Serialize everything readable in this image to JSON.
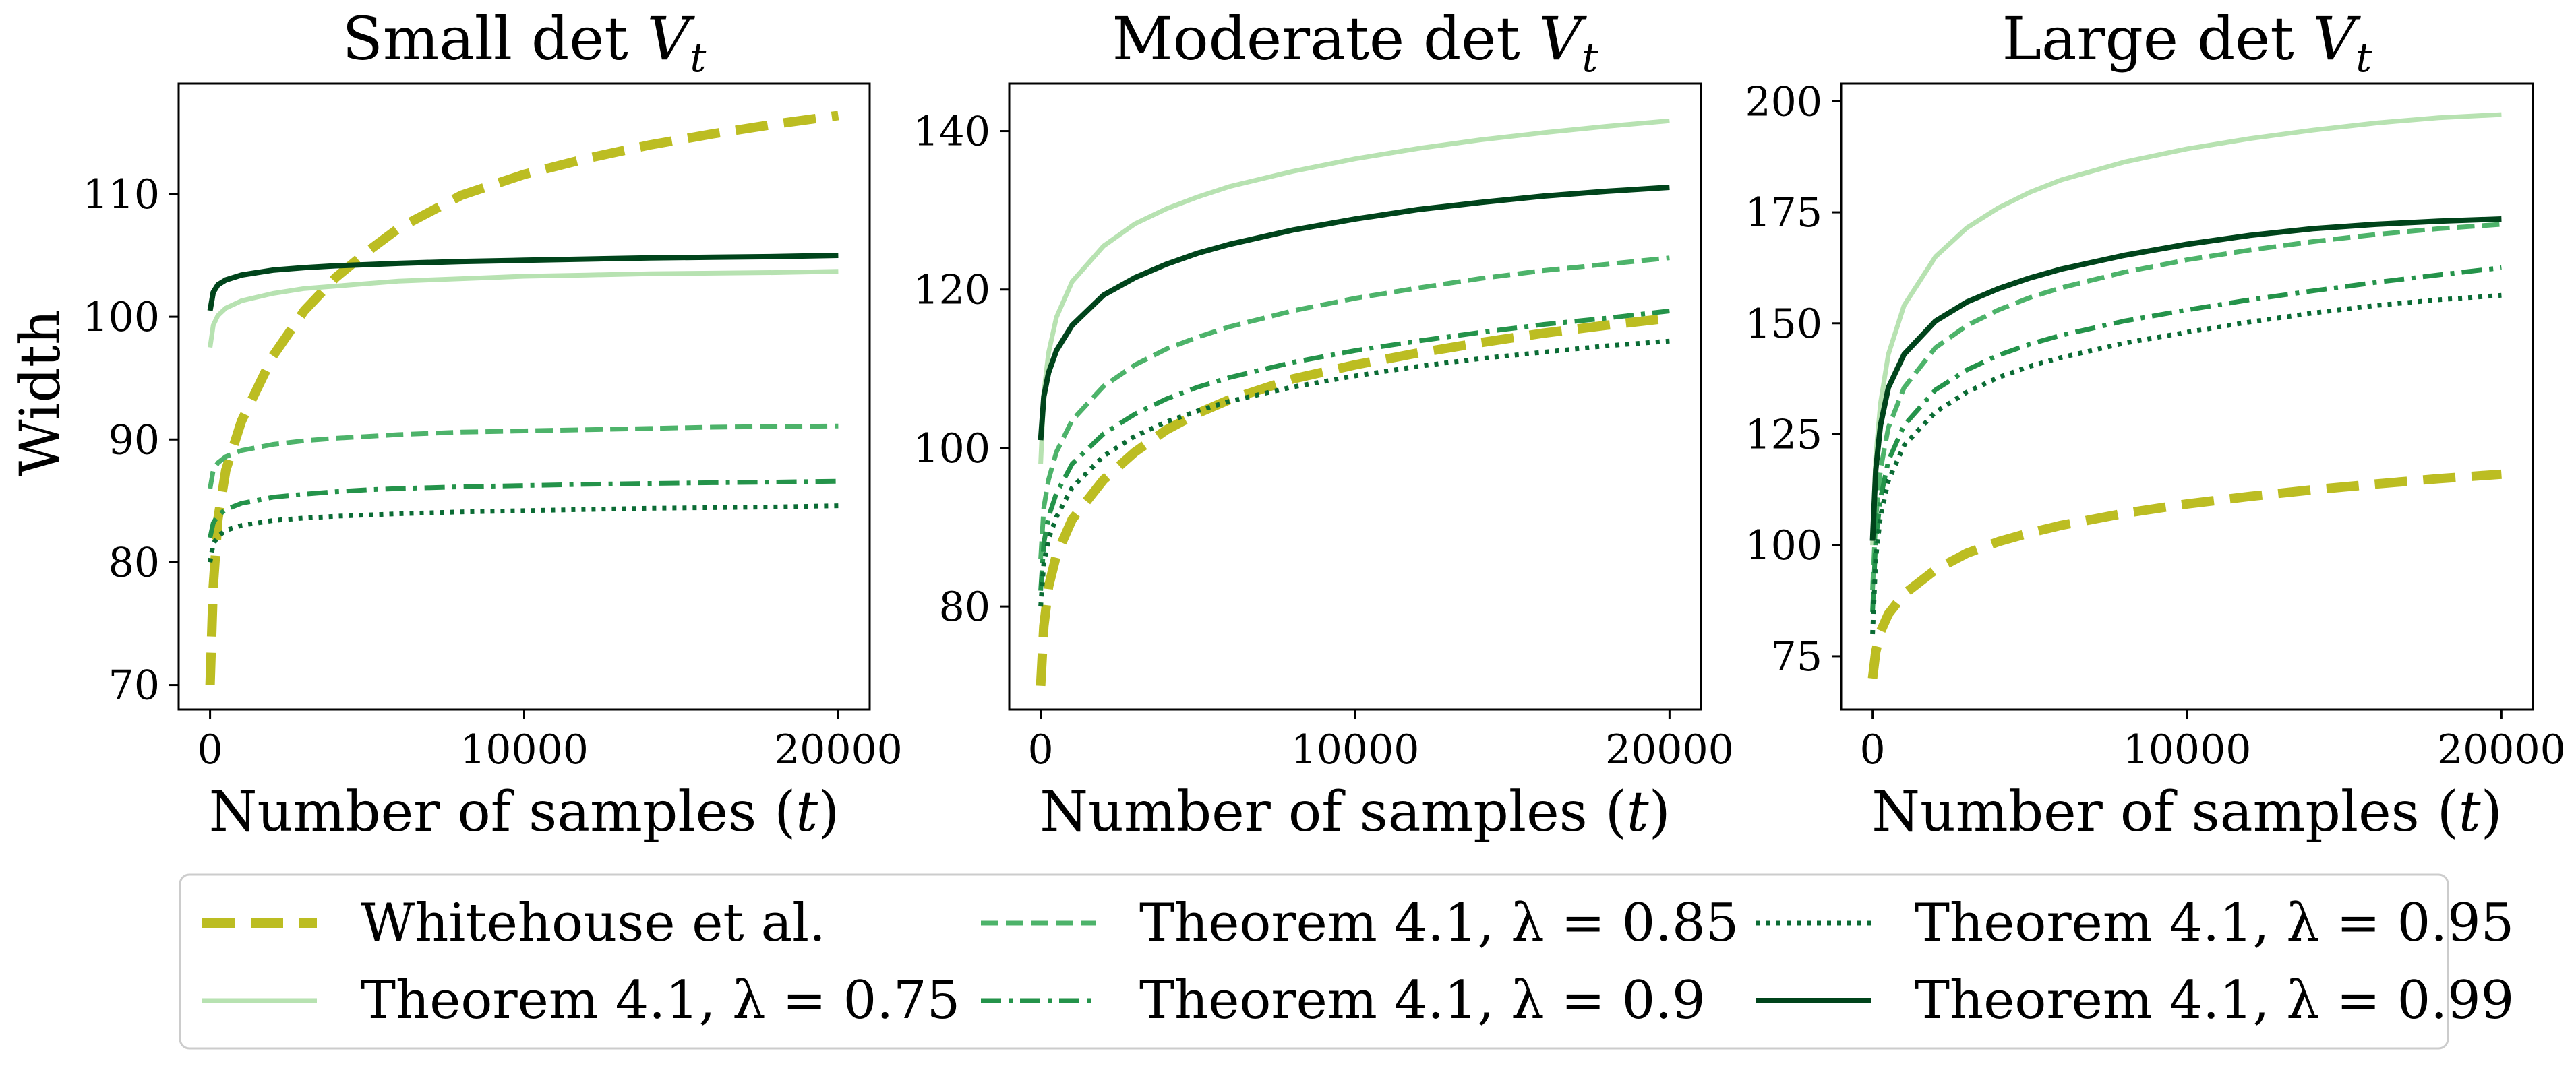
{
  "figure": {
    "y_axis_label": "Width",
    "colors": {
      "whitehouse": "#bcbd22",
      "lam075": "#b7e2b1",
      "lam085": "#4db36a",
      "lam09": "#24934a",
      "lam095": "#0a6b34",
      "lam099": "#00441b"
    }
  },
  "legend": {
    "items": [
      {
        "label": "Whitehouse et al.",
        "series": "whitehouse"
      },
      {
        "label": "Theorem 4.1, λ = 0.75",
        "series": "lam075"
      },
      {
        "label": "Theorem 4.1, λ = 0.85",
        "series": "lam085"
      },
      {
        "label": "Theorem 4.1, λ = 0.9",
        "series": "lam09"
      },
      {
        "label": "Theorem 4.1, λ = 0.95",
        "series": "lam095"
      },
      {
        "label": "Theorem 4.1, λ = 0.99",
        "series": "lam099"
      }
    ]
  },
  "chart_data": [
    {
      "type": "line",
      "title": "Small det V_t",
      "title_prefix": "Small det ",
      "title_var": "V",
      "title_sub": "t",
      "xlabel": "Number of samples (t)",
      "xlabel_text": "Number of samples (",
      "xlabel_var": "t",
      "xlabel_close": ")",
      "ylabel": "Width",
      "xlim": [
        -1000,
        21000
      ],
      "ylim": [
        68,
        119
      ],
      "xticks": [
        0,
        10000,
        20000
      ],
      "xtick_labels": [
        "0",
        "10000",
        "20000"
      ],
      "yticks": [
        70,
        80,
        90,
        100,
        110
      ],
      "ytick_labels": [
        "70",
        "80",
        "90",
        "100",
        "110"
      ],
      "series": [
        {
          "name": "Whitehouse et al.",
          "key": "whitehouse",
          "x": [
            0,
            100,
            250,
            500,
            1000,
            2000,
            3000,
            4000,
            5000,
            6000,
            8000,
            10000,
            12000,
            14000,
            16000,
            18000,
            20000
          ],
          "y": [
            70,
            78,
            83.5,
            87.5,
            91.5,
            96.8,
            100.5,
            103.2,
            105.3,
            107.2,
            109.9,
            111.6,
            112.9,
            114.0,
            114.9,
            115.7,
            116.4
          ]
        },
        {
          "name": "Theorem 4.1, λ = 0.75",
          "key": "lam075",
          "x": [
            0,
            100,
            250,
            500,
            1000,
            2000,
            3000,
            4000,
            5000,
            6000,
            8000,
            10000,
            12000,
            14000,
            16000,
            18000,
            20000
          ],
          "y": [
            97.5,
            99.3,
            100.1,
            100.7,
            101.3,
            101.9,
            102.3,
            102.5,
            102.7,
            102.9,
            103.1,
            103.3,
            103.4,
            103.5,
            103.55,
            103.6,
            103.7
          ]
        },
        {
          "name": "Theorem 4.1, λ = 0.85",
          "key": "lam085",
          "x": [
            0,
            100,
            250,
            500,
            1000,
            2000,
            3000,
            4000,
            5000,
            6000,
            8000,
            10000,
            12000,
            14000,
            16000,
            18000,
            20000
          ],
          "y": [
            86,
            87.5,
            88.1,
            88.6,
            89.1,
            89.6,
            89.9,
            90.1,
            90.25,
            90.4,
            90.6,
            90.7,
            90.8,
            90.9,
            91.0,
            91.05,
            91.1
          ]
        },
        {
          "name": "Theorem 4.1, λ = 0.9",
          "key": "lam09",
          "x": [
            0,
            100,
            250,
            500,
            1000,
            2000,
            3000,
            4000,
            5000,
            6000,
            8000,
            10000,
            12000,
            14000,
            16000,
            18000,
            20000
          ],
          "y": [
            82,
            83.2,
            83.8,
            84.3,
            84.8,
            85.3,
            85.55,
            85.75,
            85.9,
            86.0,
            86.15,
            86.25,
            86.35,
            86.42,
            86.48,
            86.53,
            86.6
          ]
        },
        {
          "name": "Theorem 4.1, λ = 0.95",
          "key": "lam095",
          "x": [
            0,
            100,
            250,
            500,
            1000,
            2000,
            3000,
            4000,
            5000,
            6000,
            8000,
            10000,
            12000,
            14000,
            16000,
            18000,
            20000
          ],
          "y": [
            80,
            81.5,
            82.1,
            82.6,
            83.0,
            83.4,
            83.6,
            83.75,
            83.85,
            83.95,
            84.1,
            84.2,
            84.3,
            84.4,
            84.45,
            84.5,
            84.6
          ]
        },
        {
          "name": "Theorem 4.1, λ = 0.99",
          "key": "lam099",
          "x": [
            0,
            100,
            250,
            500,
            1000,
            2000,
            3000,
            4000,
            5000,
            6000,
            8000,
            10000,
            12000,
            14000,
            16000,
            18000,
            20000
          ],
          "y": [
            100.5,
            102.0,
            102.6,
            103.0,
            103.4,
            103.8,
            104.0,
            104.15,
            104.25,
            104.35,
            104.5,
            104.6,
            104.7,
            104.8,
            104.85,
            104.9,
            105.0
          ]
        }
      ]
    },
    {
      "type": "line",
      "title": "Moderate det V_t",
      "title_prefix": "Moderate det ",
      "title_var": "V",
      "title_sub": "t",
      "xlabel": "Number of samples (t)",
      "xlabel_text": "Number of samples (",
      "xlabel_var": "t",
      "xlabel_close": ")",
      "ylabel": "",
      "xlim": [
        -1000,
        21000
      ],
      "ylim": [
        67,
        146
      ],
      "xticks": [
        0,
        10000,
        20000
      ],
      "xtick_labels": [
        "0",
        "10000",
        "20000"
      ],
      "yticks": [
        80,
        100,
        120,
        140
      ],
      "ytick_labels": [
        "80",
        "100",
        "120",
        "140"
      ],
      "series": [
        {
          "name": "Whitehouse et al.",
          "key": "whitehouse",
          "x": [
            0,
            100,
            250,
            500,
            1000,
            2000,
            3000,
            4000,
            5000,
            6000,
            8000,
            10000,
            12000,
            14000,
            16000,
            18000,
            20000
          ],
          "y": [
            70,
            77.5,
            82.5,
            86.5,
            91,
            96,
            99.5,
            102.3,
            104.4,
            106.1,
            108.7,
            110.5,
            112,
            113.3,
            114.5,
            115.5,
            116.4
          ]
        },
        {
          "name": "Theorem 4.1, λ = 0.75",
          "key": "lam075",
          "x": [
            0,
            100,
            250,
            500,
            1000,
            2000,
            3000,
            4000,
            5000,
            6000,
            8000,
            10000,
            12000,
            14000,
            16000,
            18000,
            20000
          ],
          "y": [
            98,
            107,
            112,
            116.5,
            121,
            125.5,
            128.3,
            130.2,
            131.7,
            133,
            134.9,
            136.5,
            137.8,
            138.9,
            139.8,
            140.6,
            141.3
          ]
        },
        {
          "name": "Theorem 4.1, λ = 0.85",
          "key": "lam085",
          "x": [
            0,
            100,
            250,
            500,
            1000,
            2000,
            3000,
            4000,
            5000,
            6000,
            8000,
            10000,
            12000,
            14000,
            16000,
            18000,
            20000
          ],
          "y": [
            86,
            92.5,
            96,
            99.5,
            103.5,
            107.8,
            110.5,
            112.5,
            114,
            115.3,
            117.3,
            118.9,
            120.2,
            121.4,
            122.4,
            123.2,
            124
          ]
        },
        {
          "name": "Theorem 4.1, λ = 0.9",
          "key": "lam09",
          "x": [
            0,
            100,
            250,
            500,
            1000,
            2000,
            3000,
            4000,
            5000,
            6000,
            8000,
            10000,
            12000,
            14000,
            16000,
            18000,
            20000
          ],
          "y": [
            82,
            88,
            91.3,
            94.3,
            98,
            101.8,
            104.3,
            106.2,
            107.7,
            108.9,
            110.8,
            112.3,
            113.5,
            114.6,
            115.6,
            116.4,
            117.3
          ]
        },
        {
          "name": "Theorem 4.1, λ = 0.95",
          "key": "lam095",
          "x": [
            0,
            100,
            250,
            500,
            1000,
            2000,
            3000,
            4000,
            5000,
            6000,
            8000,
            10000,
            12000,
            14000,
            16000,
            18000,
            20000
          ],
          "y": [
            80,
            85.5,
            88.5,
            91.3,
            95,
            99,
            101.5,
            103.3,
            104.7,
            105.9,
            107.7,
            109.1,
            110.3,
            111.3,
            112.1,
            112.9,
            113.5
          ]
        },
        {
          "name": "Theorem 4.1, λ = 0.99",
          "key": "lam099",
          "x": [
            0,
            100,
            250,
            500,
            1000,
            2000,
            3000,
            4000,
            5000,
            6000,
            8000,
            10000,
            12000,
            14000,
            16000,
            18000,
            20000
          ],
          "y": [
            101,
            106.5,
            109.5,
            112.3,
            115.5,
            119.3,
            121.5,
            123.2,
            124.6,
            125.7,
            127.5,
            128.9,
            130.1,
            131,
            131.8,
            132.4,
            132.9
          ]
        }
      ]
    },
    {
      "type": "line",
      "title": "Large det V_t",
      "title_prefix": "Large det ",
      "title_var": "V",
      "title_sub": "t",
      "xlabel": "Number of samples (t)",
      "xlabel_text": "Number of samples (",
      "xlabel_var": "t",
      "xlabel_close": ")",
      "ylabel": "",
      "xlim": [
        -1000,
        21000
      ],
      "ylim": [
        63,
        204
      ],
      "xticks": [
        0,
        10000,
        20000
      ],
      "xtick_labels": [
        "0",
        "10000",
        "20000"
      ],
      "yticks": [
        75,
        100,
        125,
        150,
        175,
        200
      ],
      "ytick_labels": [
        "75",
        "100",
        "125",
        "150",
        "175",
        "200"
      ],
      "series": [
        {
          "name": "Whitehouse et al.",
          "key": "whitehouse",
          "x": [
            0,
            100,
            250,
            500,
            1000,
            2000,
            3000,
            4000,
            5000,
            6000,
            8000,
            10000,
            12000,
            14000,
            16000,
            18000,
            20000
          ],
          "y": [
            70,
            76,
            80.5,
            84.5,
            89,
            94.5,
            98.2,
            100.8,
            102.8,
            104.5,
            107.2,
            109.3,
            111,
            112.5,
            113.8,
            115,
            116
          ]
        },
        {
          "name": "Theorem 4.1, λ = 0.75",
          "key": "lam075",
          "x": [
            0,
            100,
            250,
            500,
            1000,
            2000,
            3000,
            4000,
            5000,
            6000,
            8000,
            10000,
            12000,
            14000,
            16000,
            18000,
            20000
          ],
          "y": [
            100,
            120,
            132,
            143,
            154,
            165,
            171.5,
            176,
            179.5,
            182.3,
            186.3,
            189.3,
            191.6,
            193.5,
            195.1,
            196.3,
            197
          ]
        },
        {
          "name": "Theorem 4.1, λ = 0.85",
          "key": "lam085",
          "x": [
            0,
            100,
            250,
            500,
            1000,
            2000,
            3000,
            4000,
            5000,
            6000,
            8000,
            10000,
            12000,
            14000,
            16000,
            18000,
            20000
          ],
          "y": [
            90,
            106,
            117,
            126.5,
            135.5,
            144.5,
            149.5,
            153,
            155.8,
            158,
            161.5,
            164.3,
            166.5,
            168.4,
            170,
            171.3,
            172.3
          ]
        },
        {
          "name": "Theorem 4.1, λ = 0.9",
          "key": "lam09",
          "x": [
            0,
            100,
            250,
            500,
            1000,
            2000,
            3000,
            4000,
            5000,
            6000,
            8000,
            10000,
            12000,
            14000,
            16000,
            18000,
            20000
          ],
          "y": [
            85,
            101,
            110.5,
            119,
            127,
            135,
            139.5,
            142.8,
            145.3,
            147.3,
            150.5,
            153,
            155.3,
            157.3,
            159.2,
            160.9,
            162.5
          ]
        },
        {
          "name": "Theorem 4.1, λ = 0.95",
          "key": "lam095",
          "x": [
            0,
            100,
            250,
            500,
            1000,
            2000,
            3000,
            4000,
            5000,
            6000,
            8000,
            10000,
            12000,
            14000,
            16000,
            18000,
            20000
          ],
          "y": [
            80,
            97,
            106.5,
            114.5,
            122.5,
            130,
            134.5,
            137.8,
            140.3,
            142.3,
            145.5,
            148,
            150.3,
            152.3,
            154,
            155.3,
            156.3
          ]
        },
        {
          "name": "Theorem 4.1, λ = 0.99",
          "key": "lam099",
          "x": [
            0,
            100,
            250,
            500,
            1000,
            2000,
            3000,
            4000,
            5000,
            6000,
            8000,
            10000,
            12000,
            14000,
            16000,
            18000,
            20000
          ],
          "y": [
            101,
            117,
            127,
            135.5,
            143,
            150.5,
            154.8,
            157.8,
            160.2,
            162.2,
            165.3,
            167.8,
            169.8,
            171.3,
            172.3,
            173,
            173.5
          ]
        }
      ]
    }
  ]
}
